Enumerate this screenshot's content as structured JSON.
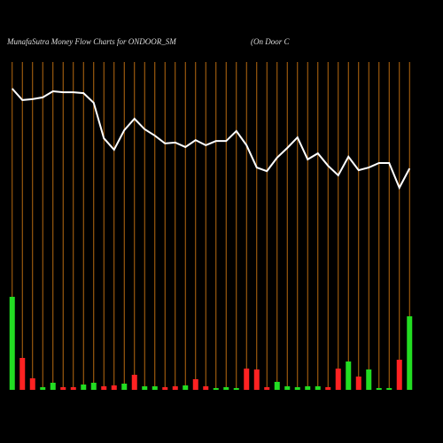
{
  "chart_data": {
    "type": "bar",
    "title": "MunafaSutra  Money Flow  Charts for ONDOOR_SM",
    "subtitle": "(On  Door  C",
    "values": [
      105,
      36,
      13,
      3,
      8,
      3,
      3,
      6,
      8,
      4,
      5,
      7,
      17,
      4,
      4,
      3,
      4,
      5,
      12,
      4,
      2,
      3,
      2,
      24,
      23,
      3,
      9,
      4,
      3,
      4,
      4,
      3,
      24,
      32,
      15,
      23,
      2,
      2,
      34,
      83
    ],
    "colors": [
      "#22dd22",
      "#ff2222",
      "#ff2222",
      "#22dd22",
      "#22dd22",
      "#ff2222",
      "#ff2222",
      "#22dd22",
      "#22dd22",
      "#ff2222",
      "#ff2222",
      "#22dd22",
      "#ff2222",
      "#22dd22",
      "#22dd22",
      "#ff2222",
      "#ff2222",
      "#22dd22",
      "#ff2222",
      "#ff2222",
      "#22dd22",
      "#22dd22",
      "#22dd22",
      "#ff2222",
      "#ff2222",
      "#ff2222",
      "#22dd22",
      "#22dd22",
      "#22dd22",
      "#22dd22",
      "#22dd22",
      "#ff2222",
      "#ff2222",
      "#22dd22",
      "#ff2222",
      "#22dd22",
      "#22dd22",
      "#22dd22",
      "#ff2222",
      "#22dd22"
    ],
    "ylim": [
      0,
      340
    ],
    "line_values": [
      100,
      96.2,
      96.5,
      97.1,
      99.1,
      98.8,
      98.8,
      98.5,
      95.3,
      83.5,
      79.7,
      86.2,
      90,
      86.5,
      84.4,
      81.8,
      82.1,
      80.6,
      82.9,
      81.2,
      82.6,
      82.6,
      85.9,
      81.2,
      73.8,
      72.6,
      77.1,
      80.3,
      83.8,
      76.5,
      78.5,
      74.4,
      71.2,
      77.4,
      72.9,
      73.8,
      75.3,
      75.3,
      67.1,
      73.5
    ],
    "line_color": "#ffffff",
    "y2lim": [
      0,
      100
    ],
    "grid_color": "#b86a10"
  }
}
